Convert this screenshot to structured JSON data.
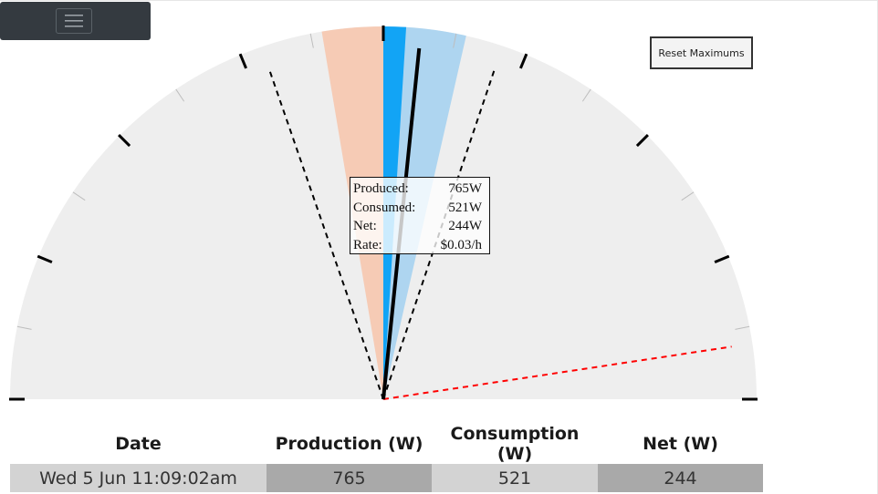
{
  "toolbar": {
    "menu_icon": "hamburger-icon",
    "reset_label": "Reset Maximums"
  },
  "gauge": {
    "scale_max": 2000,
    "produced": 765,
    "consumed": 521,
    "net": 244,
    "max_produced": 1000,
    "max_consumed": 1000,
    "export_marker": 1700,
    "colors": {
      "background": "#eeeeee",
      "produced": "#12a4f5",
      "produced_max": "#aed5f0",
      "consumed": "#f6cbb5",
      "needle": "#000000",
      "export_marker": "#ff0000"
    }
  },
  "tooltip": {
    "produced_label": "Produced:",
    "produced_value": "765W",
    "consumed_label": "Consumed:",
    "consumed_value": "521W",
    "net_label": "Net:",
    "net_value": "244W",
    "rate_label": "Rate:",
    "rate_value": "$0.03/h"
  },
  "table": {
    "headers": [
      "Date",
      "Production (W)",
      "Consumption (W)",
      "Net (W)"
    ],
    "row": [
      "Wed 5 Jun 11:09:02am",
      "765",
      "521",
      "244"
    ]
  }
}
